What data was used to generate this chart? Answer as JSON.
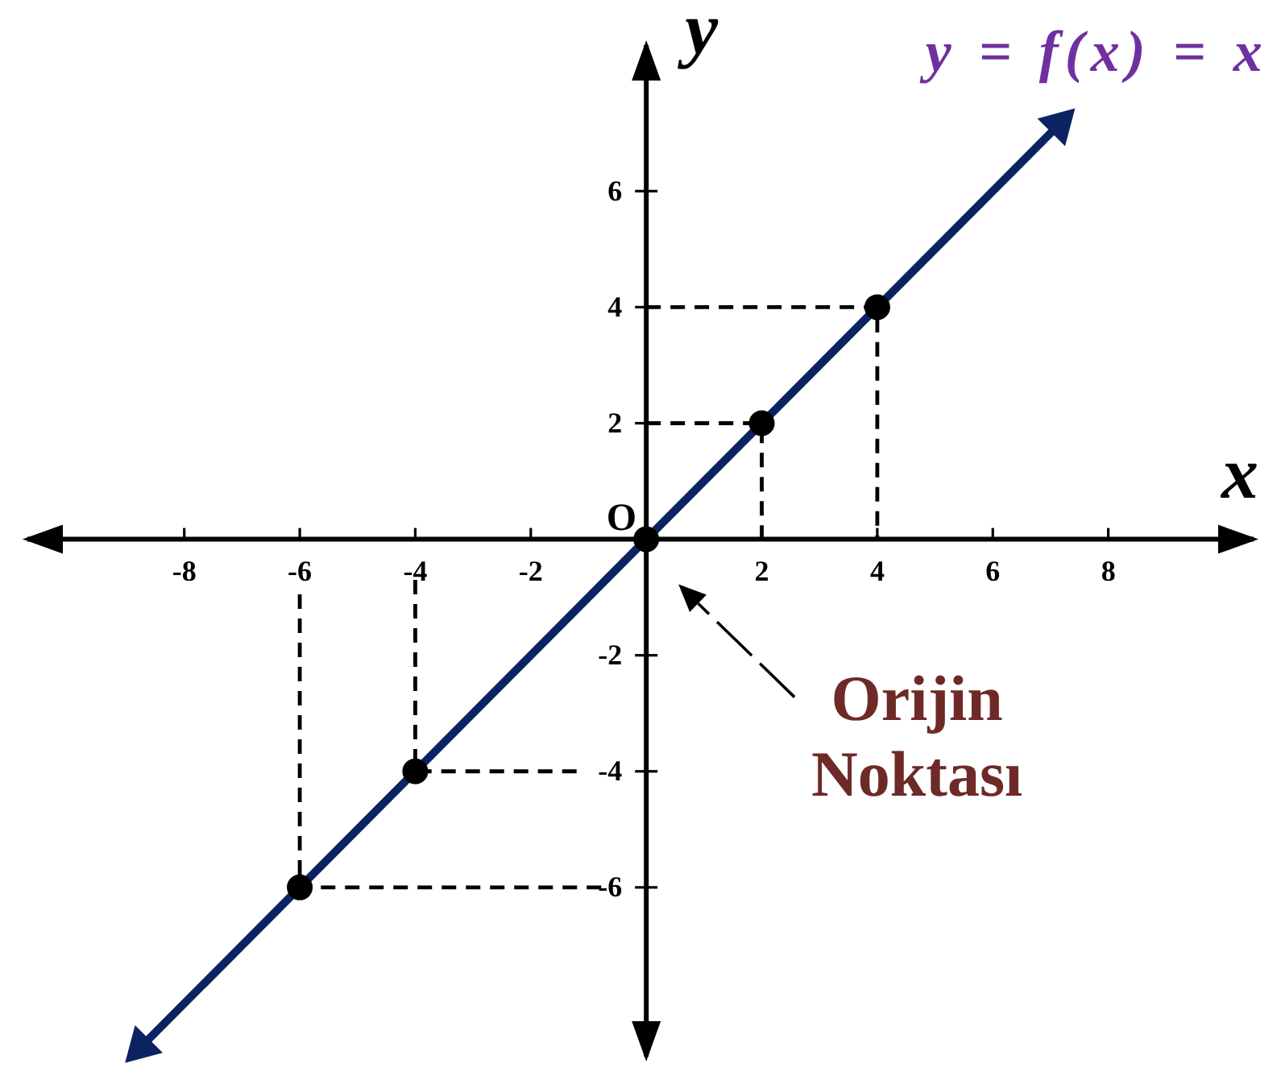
{
  "chart_data": {
    "type": "line",
    "xlabel": "x",
    "ylabel": "y",
    "xlim": [
      -10.8,
      10.6
    ],
    "ylim": [
      -9,
      8.6
    ],
    "xticks": [
      -8,
      -6,
      -4,
      -2,
      2,
      4,
      6,
      8
    ],
    "yticks": [
      -6,
      -4,
      -2,
      2,
      4,
      6
    ],
    "series": [
      {
        "x": [
          0,
          4,
          4
        ],
        "values": [
          4,
          4,
          0
        ],
        "color": "#000000",
        "line_style": "dashed",
        "marker": "none"
      },
      {
        "x": [
          0,
          2,
          2
        ],
        "values": [
          2,
          2,
          0
        ],
        "color": "#000000",
        "line_style": "dashed",
        "marker": "none"
      },
      {
        "x": [
          -4,
          -4,
          -1.2
        ],
        "values": [
          -0.7,
          -4,
          -4
        ],
        "color": "#000000",
        "line_style": "dashed",
        "marker": "none"
      },
      {
        "x": [
          -6,
          -6,
          -0.7
        ],
        "values": [
          -0.95,
          -6,
          -6
        ],
        "color": "#000000",
        "line_style": "dashed",
        "marker": "none"
      },
      {
        "name": "y = f(x) = x",
        "x": [
          -8.75,
          7.15
        ],
        "values": [
          -8.75,
          7.15
        ],
        "color": "#0b2461",
        "line_style": "solid",
        "marker": "triangle"
      },
      {
        "type": "scatter",
        "x": [
          -6,
          -4,
          0,
          2,
          4
        ],
        "values": [
          -6,
          -4,
          0,
          2,
          4
        ],
        "color": "#000000",
        "marker": "circle"
      }
    ],
    "annotations": [
      {
        "text": "O",
        "x": 0,
        "y": 0
      },
      "Orijin Noktası"
    ]
  }
}
